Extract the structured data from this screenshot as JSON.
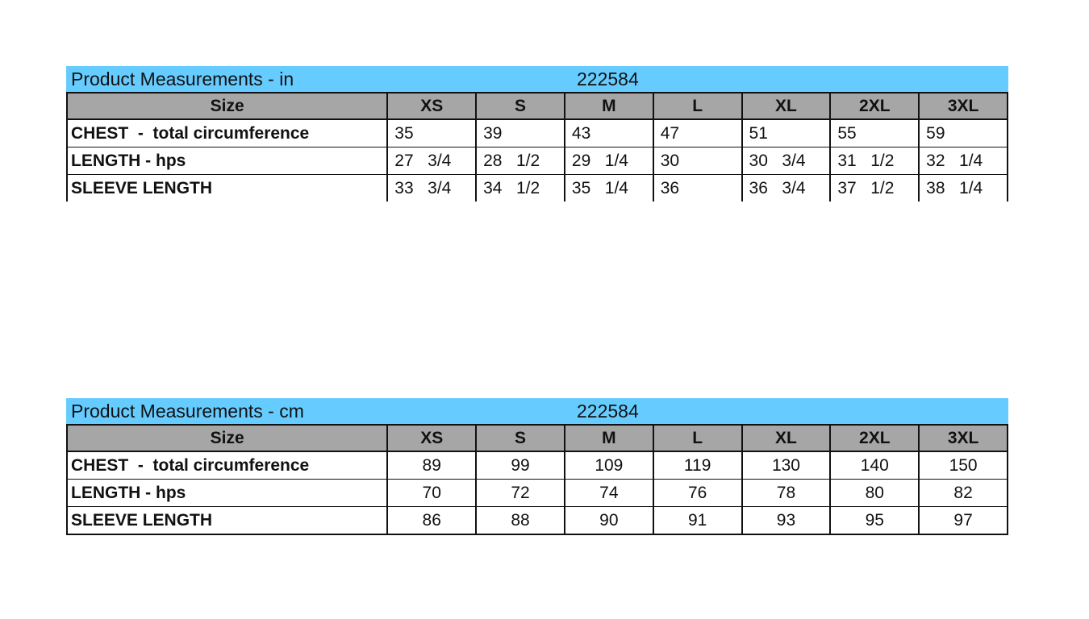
{
  "tables": [
    {
      "title": "Product Measurements -  in",
      "style_id": "222584",
      "header": [
        "Size",
        "XS",
        "S",
        "M",
        "L",
        "XL",
        "2XL",
        "3XL"
      ],
      "rows": [
        {
          "label": "CHEST  -  total circumference",
          "values": [
            "35",
            "39",
            "43",
            "47",
            "51",
            "55",
            "59"
          ]
        },
        {
          "label": "LENGTH - hps",
          "values": [
            "27   3/4",
            "28   1/2",
            "29   1/4",
            "30",
            "30   3/4",
            "31   1/2",
            "32   1/4"
          ]
        },
        {
          "label": "SLEEVE LENGTH",
          "values": [
            "33   3/4",
            "34   1/2",
            "35   1/4",
            "36",
            "36   3/4",
            "37   1/2",
            "38   1/4"
          ]
        }
      ]
    },
    {
      "title": "Product Measurements -  cm",
      "style_id": "222584",
      "header": [
        "Size",
        "XS",
        "S",
        "M",
        "L",
        "XL",
        "2XL",
        "3XL"
      ],
      "rows": [
        {
          "label": "CHEST  -  total circumference",
          "values": [
            "89",
            "99",
            "109",
            "119",
            "130",
            "140",
            "150"
          ]
        },
        {
          "label": "LENGTH - hps",
          "values": [
            "70",
            "72",
            "74",
            "76",
            "78",
            "80",
            "82"
          ]
        },
        {
          "label": "SLEEVE LENGTH",
          "values": [
            "86",
            "88",
            "90",
            "91",
            "93",
            "95",
            "97"
          ]
        }
      ]
    }
  ],
  "colors": {
    "title_bg": "#66ccff",
    "header_bg": "#a6a6a6"
  }
}
